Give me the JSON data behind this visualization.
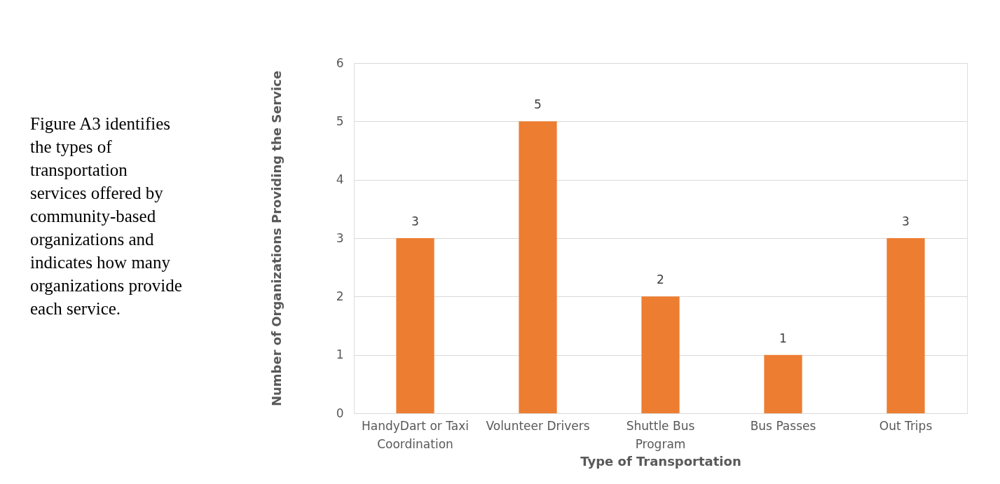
{
  "chart_data": {
    "type": "bar",
    "categories": [
      "HandyDart or Taxi\nCoordination",
      "Volunteer Drivers",
      "Shuttle Bus\nProgram",
      "Bus Passes",
      "Out Trips"
    ],
    "values": [
      3,
      5,
      2,
      1,
      3
    ],
    "color": "#ed7d31",
    "xlabel": "Type of Transportation",
    "ylabel": "Number of Organizations Providing the Service",
    "ylim": [
      0,
      6
    ],
    "yticks": [
      0,
      1,
      2,
      3,
      4,
      5,
      6
    ],
    "grid": "y",
    "data_labels": true,
    "annotations": [
      "Figure A3 identifies\nthe types of\ntransportation\nservices offered by\ncommunity-based\norganizations and\nindicates how many\norganizations provide\neach service."
    ]
  }
}
